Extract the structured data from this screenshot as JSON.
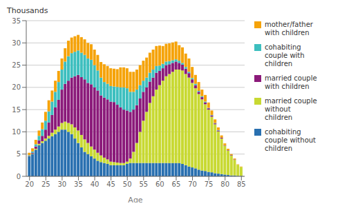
{
  "chart_data": {
    "type": "bar",
    "stacked": true,
    "grid": true,
    "legend": "right",
    "xlabel": "Age",
    "ylabel": "Thousands",
    "x": [
      20,
      21,
      22,
      23,
      24,
      25,
      26,
      27,
      28,
      29,
      30,
      31,
      32,
      33,
      34,
      35,
      36,
      37,
      38,
      39,
      40,
      41,
      42,
      43,
      44,
      45,
      46,
      47,
      48,
      49,
      50,
      51,
      52,
      53,
      54,
      55,
      56,
      57,
      58,
      59,
      60,
      61,
      62,
      63,
      64,
      65,
      66,
      67,
      68,
      69,
      70,
      71,
      72,
      73,
      74,
      75,
      76,
      77,
      78,
      79,
      80,
      81,
      82,
      83,
      84,
      85
    ],
    "xlim": [
      19,
      86
    ],
    "xticks": [
      20,
      25,
      30,
      35,
      40,
      45,
      50,
      55,
      60,
      65,
      70,
      75,
      80,
      85
    ],
    "ylim": [
      0,
      35
    ],
    "yticks": [
      0,
      5,
      10,
      15,
      20,
      25,
      30,
      35
    ],
    "series": [
      {
        "name": "cohabiting\ncouple without\nchildren",
        "color": "#2970b0",
        "values": [
          4.5,
          5.0,
          6.0,
          7.0,
          7.5,
          8.0,
          8.5,
          9.0,
          9.5,
          10.0,
          10.5,
          10.5,
          10.0,
          9.5,
          8.5,
          7.5,
          6.5,
          5.5,
          5.0,
          4.5,
          4.0,
          3.5,
          3.2,
          3.0,
          2.8,
          2.5,
          2.5,
          2.5,
          2.5,
          2.5,
          2.8,
          3.0,
          3.0,
          3.0,
          3.0,
          3.0,
          3.0,
          3.0,
          3.0,
          3.0,
          3.0,
          3.0,
          3.0,
          3.0,
          3.0,
          3.0,
          3.0,
          2.8,
          2.5,
          2.2,
          2.0,
          1.8,
          1.5,
          1.3,
          1.2,
          1.0,
          0.9,
          0.7,
          0.6,
          0.5,
          0.4,
          0.3,
          0.2,
          0.2,
          0.1,
          0.1
        ]
      },
      {
        "name": "married couple\nwithout\nchildren",
        "color": "#c8d932",
        "values": [
          0.1,
          0.1,
          0.2,
          0.3,
          0.4,
          0.5,
          0.6,
          0.8,
          1.0,
          1.2,
          1.5,
          1.8,
          2.0,
          2.2,
          2.5,
          2.8,
          2.8,
          2.8,
          2.5,
          2.2,
          2.0,
          1.8,
          1.5,
          1.2,
          1.0,
          0.8,
          0.7,
          0.6,
          0.5,
          0.5,
          0.5,
          1.0,
          2.5,
          4.5,
          7.0,
          9.5,
          11.5,
          13.5,
          15.0,
          16.5,
          17.5,
          18.5,
          19.5,
          20.0,
          20.5,
          21.0,
          21.0,
          21.0,
          20.5,
          20.0,
          19.0,
          18.0,
          17.0,
          16.0,
          15.0,
          14.0,
          12.5,
          11.0,
          9.5,
          8.0,
          6.5,
          5.5,
          4.5,
          3.5,
          2.5,
          2.0
        ]
      },
      {
        "name": "married couple\nwith children",
        "color": "#8b1a7a",
        "values": [
          0.1,
          0.2,
          0.5,
          0.8,
          1.2,
          2.0,
          3.0,
          4.0,
          5.0,
          6.0,
          7.5,
          8.5,
          9.5,
          10.5,
          11.5,
          12.5,
          13.0,
          13.5,
          13.5,
          14.0,
          14.0,
          14.0,
          13.5,
          13.5,
          13.5,
          13.5,
          13.5,
          13.0,
          12.5,
          12.0,
          11.5,
          10.5,
          9.5,
          8.5,
          7.5,
          6.5,
          5.5,
          4.8,
          4.2,
          3.8,
          3.2,
          2.8,
          2.5,
          2.2,
          2.0,
          1.8,
          1.5,
          1.3,
          1.2,
          1.0,
          0.8,
          0.7,
          0.5,
          0.5,
          0.4,
          0.3,
          0.3,
          0.2,
          0.2,
          0.2,
          0.1,
          0.1,
          0.1,
          0.1,
          0.0,
          0.0
        ]
      },
      {
        "name": "cohabiting\ncouple with\nchildren",
        "color": "#3dbfbf",
        "values": [
          0.1,
          0.3,
          0.5,
          1.0,
          1.5,
          2.0,
          2.5,
          3.0,
          3.5,
          4.0,
          4.5,
          5.0,
          5.5,
          5.5,
          5.5,
          5.5,
          5.5,
          5.5,
          5.5,
          5.5,
          5.0,
          4.5,
          4.0,
          3.5,
          3.5,
          3.5,
          3.5,
          4.0,
          4.5,
          5.0,
          5.0,
          4.5,
          4.0,
          3.5,
          3.0,
          2.5,
          2.2,
          2.0,
          1.8,
          1.5,
          1.2,
          1.0,
          0.8,
          0.7,
          0.6,
          0.5,
          0.5,
          0.4,
          0.4,
          0.3,
          0.3,
          0.3,
          0.2,
          0.2,
          0.2,
          0.1,
          0.1,
          0.1,
          0.1,
          0.0,
          0.0,
          0.0,
          0.0,
          0.0,
          0.0,
          0.0
        ]
      },
      {
        "name": "mother/father\nwith children",
        "color": "#f5a30a",
        "values": [
          0.5,
          0.7,
          1.0,
          1.2,
          1.5,
          2.0,
          2.5,
          2.5,
          2.5,
          2.5,
          2.5,
          3.0,
          3.5,
          3.5,
          3.5,
          3.5,
          3.5,
          3.5,
          3.5,
          3.5,
          3.5,
          3.5,
          3.5,
          4.0,
          4.0,
          4.0,
          4.0,
          4.0,
          4.5,
          4.5,
          4.5,
          4.5,
          4.5,
          4.5,
          4.5,
          4.5,
          4.5,
          4.5,
          4.5,
          4.5,
          4.5,
          4.0,
          4.0,
          4.0,
          4.0,
          4.0,
          3.5,
          3.5,
          3.0,
          3.0,
          2.5,
          2.0,
          2.0,
          1.5,
          1.5,
          1.2,
          1.0,
          0.8,
          0.6,
          0.5,
          0.4,
          0.3,
          0.2,
          0.2,
          0.1,
          0.1
        ]
      }
    ]
  }
}
